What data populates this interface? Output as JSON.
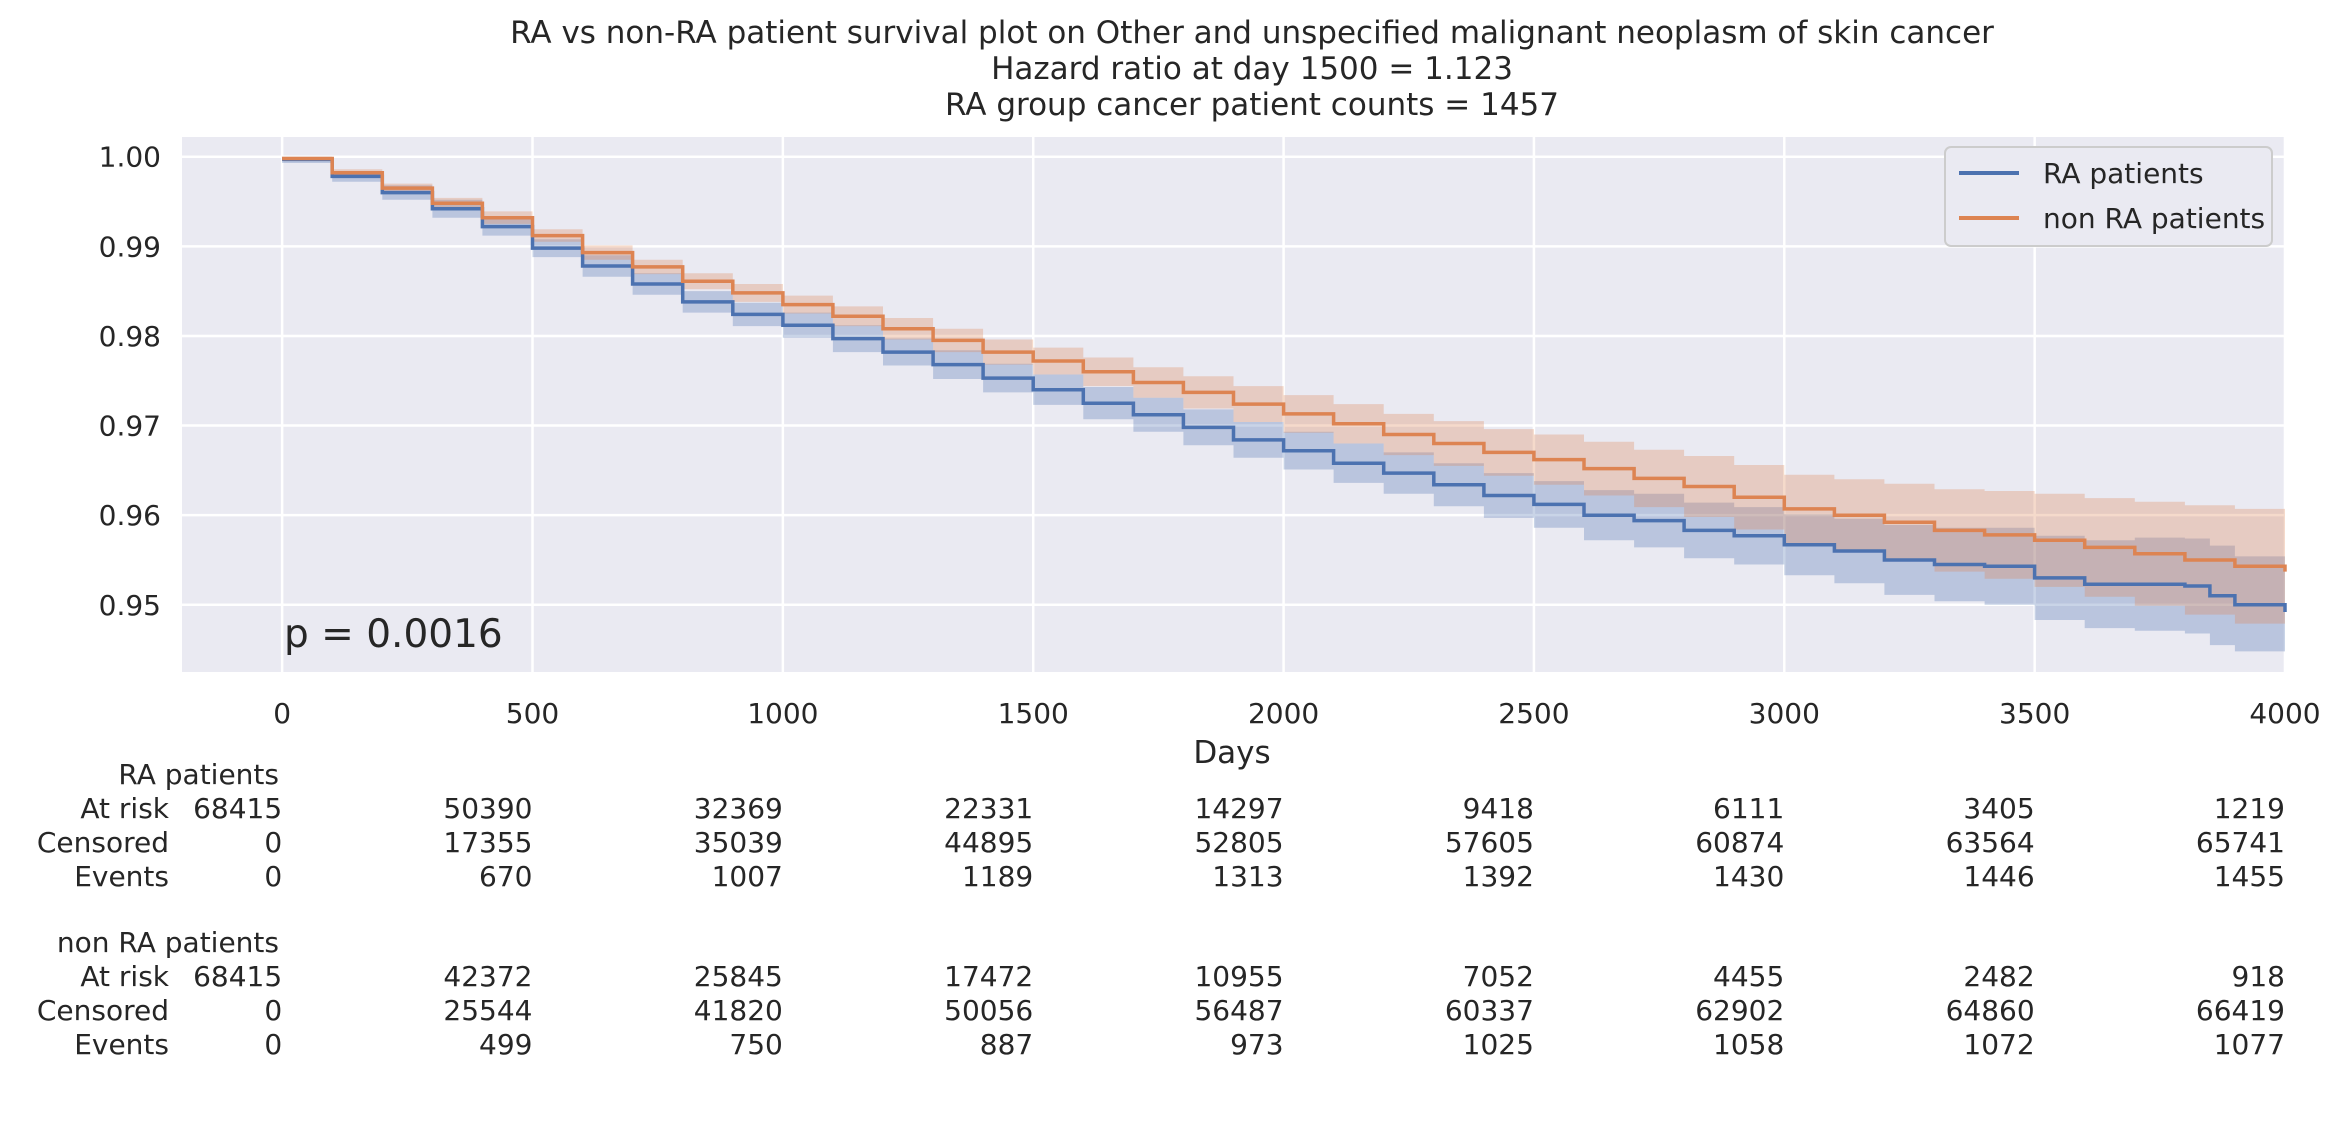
{
  "chart_data": {
    "type": "line",
    "subtype": "kaplan-meier survival with confidence bands",
    "title_lines": [
      "RA vs non-RA patient survival plot on Other and unspecified malignant neoplasm of skin cancer",
      "Hazard ratio at day 1500 = 1.123",
      "RA group cancer patient counts = 1457"
    ],
    "xlabel": "Days",
    "ylabel": "",
    "xlim": [
      -200,
      4000
    ],
    "ylim": [
      0.9425,
      1.0022
    ],
    "xticks": [
      0,
      500,
      1000,
      1500,
      2000,
      2500,
      3000,
      3500,
      4000
    ],
    "yticks": [
      1.0,
      0.99,
      0.98,
      0.97,
      0.96,
      0.95
    ],
    "ytick_labels": [
      "1.00",
      "0.99",
      "0.98",
      "0.97",
      "0.96",
      "0.95"
    ],
    "grid": true,
    "background": "#eaeaf2",
    "legend_position": "top-right",
    "annotation": "p = 0.0016",
    "series": [
      {
        "name": "RA patients",
        "color": "#4c72b0",
        "x": [
          0,
          100,
          200,
          300,
          400,
          500,
          600,
          700,
          800,
          900,
          1000,
          1100,
          1200,
          1300,
          1400,
          1500,
          1600,
          1700,
          1800,
          1900,
          2000,
          2100,
          2200,
          2300,
          2400,
          2500,
          2600,
          2700,
          2800,
          2900,
          3000,
          3100,
          3200,
          3300,
          3400,
          3500,
          3600,
          3700,
          3800,
          3850,
          3900,
          4000
        ],
        "y": [
          0.9997,
          0.9978,
          0.996,
          0.9942,
          0.9922,
          0.9898,
          0.9878,
          0.9858,
          0.9838,
          0.9824,
          0.9812,
          0.9797,
          0.9782,
          0.9768,
          0.9753,
          0.974,
          0.9725,
          0.9712,
          0.9698,
          0.9684,
          0.9672,
          0.9658,
          0.9647,
          0.9634,
          0.9622,
          0.9612,
          0.96,
          0.9594,
          0.9583,
          0.9577,
          0.9567,
          0.956,
          0.955,
          0.9545,
          0.9543,
          0.953,
          0.9523,
          0.9523,
          0.9521,
          0.951,
          0.95,
          0.9492
        ],
        "ci_lower": [
          0.9993,
          0.9972,
          0.9952,
          0.9932,
          0.9912,
          0.9888,
          0.9866,
          0.9846,
          0.9826,
          0.9811,
          0.9798,
          0.9782,
          0.9767,
          0.9752,
          0.9737,
          0.9723,
          0.9707,
          0.9693,
          0.9678,
          0.9664,
          0.9651,
          0.9636,
          0.9624,
          0.961,
          0.9597,
          0.9586,
          0.9572,
          0.9564,
          0.9552,
          0.9545,
          0.9533,
          0.9524,
          0.9511,
          0.9504,
          0.95,
          0.9483,
          0.9474,
          0.9471,
          0.9468,
          0.9455,
          0.9448,
          0.9445
        ],
        "ci_upper": [
          1.0,
          0.9984,
          0.9968,
          0.9952,
          0.9932,
          0.9908,
          0.989,
          0.987,
          0.985,
          0.9837,
          0.9826,
          0.9812,
          0.9797,
          0.9784,
          0.9769,
          0.9757,
          0.9743,
          0.9731,
          0.9718,
          0.9704,
          0.9693,
          0.968,
          0.967,
          0.9658,
          0.9647,
          0.9638,
          0.9628,
          0.9624,
          0.9614,
          0.9609,
          0.9601,
          0.9596,
          0.9589,
          0.9586,
          0.9586,
          0.9577,
          0.9572,
          0.9575,
          0.9574,
          0.9566,
          0.9554,
          0.954
        ]
      },
      {
        "name": "non RA patients",
        "color": "#dd8452",
        "x": [
          0,
          100,
          200,
          300,
          400,
          500,
          600,
          700,
          800,
          900,
          1000,
          1100,
          1200,
          1300,
          1400,
          1500,
          1600,
          1700,
          1800,
          1900,
          2000,
          2100,
          2200,
          2300,
          2400,
          2500,
          2600,
          2700,
          2800,
          2900,
          3000,
          3100,
          3200,
          3300,
          3400,
          3500,
          3600,
          3700,
          3800,
          3900,
          4000
        ],
        "y": [
          0.9998,
          0.9982,
          0.9965,
          0.9948,
          0.9932,
          0.9912,
          0.9893,
          0.9877,
          0.9861,
          0.9848,
          0.9835,
          0.9822,
          0.9808,
          0.9795,
          0.9782,
          0.9772,
          0.976,
          0.9748,
          0.9737,
          0.9724,
          0.9713,
          0.9702,
          0.969,
          0.968,
          0.967,
          0.9662,
          0.9652,
          0.9641,
          0.9632,
          0.962,
          0.9607,
          0.96,
          0.9592,
          0.9583,
          0.9578,
          0.9572,
          0.9564,
          0.9557,
          0.955,
          0.9543,
          0.9537
        ],
        "ci_lower": [
          0.9996,
          0.9978,
          0.996,
          0.9942,
          0.9925,
          0.9905,
          0.9885,
          0.9869,
          0.9852,
          0.9838,
          0.9825,
          0.9811,
          0.9796,
          0.9782,
          0.9768,
          0.9757,
          0.9744,
          0.9731,
          0.9719,
          0.9704,
          0.9692,
          0.968,
          0.9667,
          0.9655,
          0.9644,
          0.9634,
          0.9622,
          0.9609,
          0.9598,
          0.9584,
          0.9569,
          0.956,
          0.9549,
          0.9537,
          0.9529,
          0.952,
          0.9509,
          0.9499,
          0.9489,
          0.9479,
          0.9469
        ],
        "ci_upper": [
          1.0,
          0.9986,
          0.997,
          0.9954,
          0.9939,
          0.9919,
          0.9901,
          0.9885,
          0.987,
          0.9858,
          0.9845,
          0.9833,
          0.982,
          0.9808,
          0.9796,
          0.9787,
          0.9776,
          0.9765,
          0.9755,
          0.9744,
          0.9734,
          0.9724,
          0.9713,
          0.9705,
          0.9696,
          0.969,
          0.9682,
          0.9673,
          0.9666,
          0.9656,
          0.9645,
          0.964,
          0.9635,
          0.9629,
          0.9627,
          0.9624,
          0.9619,
          0.9615,
          0.9611,
          0.9607,
          0.9605
        ]
      }
    ],
    "risk_table": {
      "timepoints": [
        0,
        500,
        1000,
        1500,
        2000,
        2500,
        3000,
        3500,
        4000
      ],
      "groups": [
        {
          "name": "RA patients",
          "rows": [
            {
              "label": "At risk",
              "values": [
                68415,
                50390,
                32369,
                22331,
                14297,
                9418,
                6111,
                3405,
                1219
              ]
            },
            {
              "label": "Censored",
              "values": [
                0,
                17355,
                35039,
                44895,
                52805,
                57605,
                60874,
                63564,
                65741
              ]
            },
            {
              "label": "Events",
              "values": [
                0,
                670,
                1007,
                1189,
                1313,
                1392,
                1430,
                1446,
                1455
              ]
            }
          ]
        },
        {
          "name": "non RA patients",
          "rows": [
            {
              "label": "At risk",
              "values": [
                68415,
                42372,
                25845,
                17472,
                10955,
                7052,
                4455,
                2482,
                918
              ]
            },
            {
              "label": "Censored",
              "values": [
                0,
                25544,
                41820,
                50056,
                56487,
                60337,
                62902,
                64860,
                66419
              ]
            },
            {
              "label": "Events",
              "values": [
                0,
                499,
                750,
                887,
                973,
                1025,
                1058,
                1072,
                1077
              ]
            }
          ]
        }
      ]
    }
  }
}
